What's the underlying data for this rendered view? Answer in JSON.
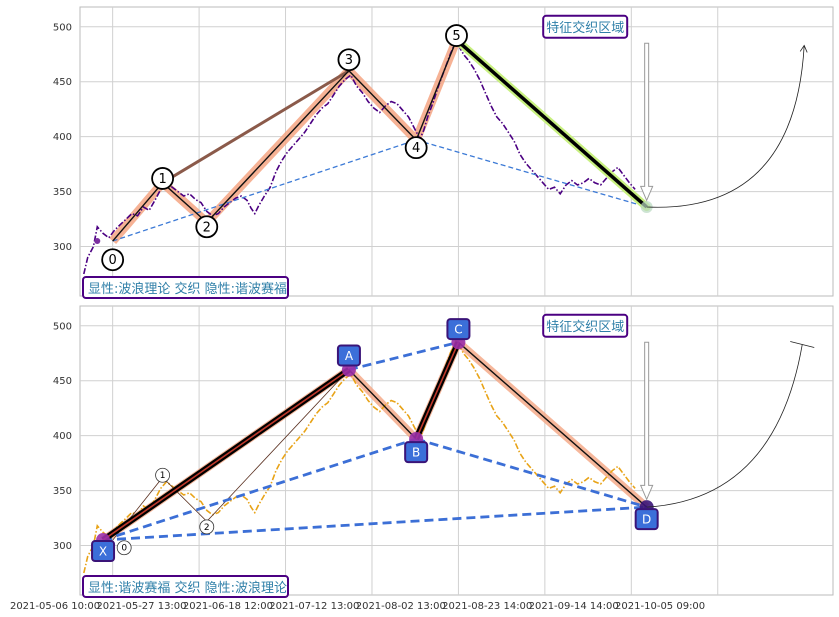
{
  "chart_data": [
    {
      "type": "line",
      "panel": "top",
      "ylim": [
        255,
        518
      ],
      "yticks": [
        300,
        350,
        400,
        450,
        500
      ],
      "grid": true,
      "price_color": "#4b0082",
      "price_style": "dash-dot",
      "price": [
        [
          -0.5,
          275
        ],
        [
          -0.3,
          290
        ],
        [
          0,
          300
        ],
        [
          0.2,
          318
        ],
        [
          0.5,
          312
        ],
        [
          0.8,
          308
        ],
        [
          1.1,
          315
        ],
        [
          1.4,
          320
        ],
        [
          1.7,
          325
        ],
        [
          2.0,
          330
        ],
        [
          2.3,
          328
        ],
        [
          2.6,
          336
        ],
        [
          2.9,
          333
        ],
        [
          3.2,
          342
        ],
        [
          3.5,
          352
        ],
        [
          3.8,
          358
        ],
        [
          4.1,
          354
        ],
        [
          4.4,
          350
        ],
        [
          4.7,
          346
        ],
        [
          5.0,
          348
        ],
        [
          5.3,
          343
        ],
        [
          5.6,
          340
        ],
        [
          5.9,
          332
        ],
        [
          6.2,
          328
        ],
        [
          6.5,
          330
        ],
        [
          6.8,
          336
        ],
        [
          7.1,
          340
        ],
        [
          7.4,
          344
        ],
        [
          7.7,
          346
        ],
        [
          8.0,
          342
        ],
        [
          8.2,
          335
        ],
        [
          8.4,
          330
        ],
        [
          8.6,
          337
        ],
        [
          8.9,
          346
        ],
        [
          9.2,
          354
        ],
        [
          9.5,
          368
        ],
        [
          9.8,
          378
        ],
        [
          10.1,
          386
        ],
        [
          10.4,
          392
        ],
        [
          10.7,
          398
        ],
        [
          11.0,
          404
        ],
        [
          11.3,
          412
        ],
        [
          11.6,
          420
        ],
        [
          11.9,
          426
        ],
        [
          12.2,
          430
        ],
        [
          12.5,
          438
        ],
        [
          12.8,
          446
        ],
        [
          13.1,
          452
        ],
        [
          13.4,
          456
        ],
        [
          13.7,
          446
        ],
        [
          14.0,
          440
        ],
        [
          14.3,
          432
        ],
        [
          14.6,
          426
        ],
        [
          14.9,
          422
        ],
        [
          15.2,
          428
        ],
        [
          15.5,
          432
        ],
        [
          15.8,
          430
        ],
        [
          16.1,
          424
        ],
        [
          16.4,
          418
        ],
        [
          16.7,
          408
        ],
        [
          17.0,
          398
        ],
        [
          17.2,
          406
        ],
        [
          17.4,
          418
        ],
        [
          17.7,
          432
        ],
        [
          18.0,
          448
        ],
        [
          18.3,
          462
        ],
        [
          18.6,
          476
        ],
        [
          18.9,
          488
        ],
        [
          19.1,
          480
        ],
        [
          19.3,
          474
        ],
        [
          19.5,
          470
        ],
        [
          19.8,
          462
        ],
        [
          20.1,
          452
        ],
        [
          20.4,
          440
        ],
        [
          20.7,
          428
        ],
        [
          21.0,
          418
        ],
        [
          21.3,
          412
        ],
        [
          21.6,
          404
        ],
        [
          21.9,
          396
        ],
        [
          22.2,
          384
        ],
        [
          22.5,
          376
        ],
        [
          22.8,
          370
        ],
        [
          23.1,
          364
        ],
        [
          23.4,
          358
        ],
        [
          23.7,
          352
        ],
        [
          24.0,
          354
        ],
        [
          24.3,
          348
        ],
        [
          24.6,
          356
        ],
        [
          24.9,
          360
        ],
        [
          25.2,
          356
        ],
        [
          25.5,
          358
        ],
        [
          25.8,
          362
        ],
        [
          26.1,
          358
        ],
        [
          26.4,
          356
        ],
        [
          26.7,
          362
        ],
        [
          27.0,
          368
        ],
        [
          27.3,
          372
        ],
        [
          27.6,
          365
        ],
        [
          27.9,
          358
        ],
        [
          28.2,
          352
        ]
      ],
      "wave_points": [
        {
          "label": "0",
          "x": 1.0,
          "y": 305
        },
        {
          "label": "1",
          "x": 3.6,
          "y": 358
        },
        {
          "label": "2",
          "x": 5.9,
          "y": 322
        },
        {
          "label": "3",
          "x": 13.3,
          "y": 460
        },
        {
          "label": "4",
          "x": 16.8,
          "y": 397
        },
        {
          "label": "5",
          "x": 18.9,
          "y": 488
        },
        {
          "label": "",
          "x": 28.8,
          "y": 336
        }
      ],
      "wave_label_pos": [
        [
          1.0,
          288
        ],
        [
          3.6,
          362
        ],
        [
          5.9,
          318
        ],
        [
          13.3,
          470
        ],
        [
          16.8,
          390
        ],
        [
          18.9,
          492
        ]
      ],
      "lines": [
        {
          "from": [
            3.6,
            358
          ],
          "to": [
            13.3,
            460
          ],
          "color": "#8b4513",
          "kind": "thick-brown"
        },
        {
          "from": [
            18.9,
            488
          ],
          "to": [
            28.8,
            336
          ],
          "color": "#c8f080",
          "kind": "highlight"
        },
        {
          "from": [
            18.9,
            488
          ],
          "to": [
            28.8,
            336
          ],
          "color": "#000000",
          "kind": "thick-black"
        },
        {
          "from": [
            1.0,
            305
          ],
          "to": [
            16.8,
            397
          ],
          "color": "#3c7ad6",
          "kind": "dashed"
        },
        {
          "from": [
            16.8,
            397
          ],
          "to": [
            28.8,
            336
          ],
          "color": "#3c7ad6",
          "kind": "dashed"
        }
      ],
      "zone_label": "特征交织区域",
      "zone_label_pos": [
        25.6,
        500
      ],
      "arrow_down": {
        "x": 28.8,
        "from": 485,
        "to": 342
      },
      "curve_arrow": {
        "from": [
          28.8,
          336
        ],
        "ctrl": [
          36.5,
          330
        ],
        "to": [
          37.0,
          483
        ]
      },
      "caption": "显性:波浪理论 交织 隐性:谐波赛福"
    },
    {
      "type": "line",
      "panel": "bottom",
      "ylim": [
        255,
        518
      ],
      "yticks": [
        300,
        350,
        400,
        450,
        500
      ],
      "grid": true,
      "price_color": "#e8a317",
      "price_style": "dash-dot",
      "price": [
        [
          -0.5,
          275
        ],
        [
          -0.3,
          290
        ],
        [
          0,
          300
        ],
        [
          0.2,
          318
        ],
        [
          0.5,
          312
        ],
        [
          0.8,
          308
        ],
        [
          1.1,
          315
        ],
        [
          1.4,
          320
        ],
        [
          1.7,
          325
        ],
        [
          2.0,
          330
        ],
        [
          2.3,
          328
        ],
        [
          2.6,
          336
        ],
        [
          2.9,
          333
        ],
        [
          3.2,
          342
        ],
        [
          3.5,
          352
        ],
        [
          3.8,
          358
        ],
        [
          4.1,
          354
        ],
        [
          4.4,
          350
        ],
        [
          4.7,
          346
        ],
        [
          5.0,
          348
        ],
        [
          5.3,
          343
        ],
        [
          5.6,
          340
        ],
        [
          5.9,
          332
        ],
        [
          6.2,
          328
        ],
        [
          6.5,
          330
        ],
        [
          6.8,
          336
        ],
        [
          7.1,
          340
        ],
        [
          7.4,
          344
        ],
        [
          7.7,
          346
        ],
        [
          8.0,
          342
        ],
        [
          8.2,
          335
        ],
        [
          8.4,
          330
        ],
        [
          8.6,
          337
        ],
        [
          8.9,
          346
        ],
        [
          9.2,
          354
        ],
        [
          9.5,
          368
        ],
        [
          9.8,
          378
        ],
        [
          10.1,
          386
        ],
        [
          10.4,
          392
        ],
        [
          10.7,
          398
        ],
        [
          11.0,
          404
        ],
        [
          11.3,
          412
        ],
        [
          11.6,
          420
        ],
        [
          11.9,
          426
        ],
        [
          12.2,
          430
        ],
        [
          12.5,
          438
        ],
        [
          12.8,
          446
        ],
        [
          13.1,
          452
        ],
        [
          13.4,
          456
        ],
        [
          13.7,
          446
        ],
        [
          14.0,
          440
        ],
        [
          14.3,
          432
        ],
        [
          14.6,
          426
        ],
        [
          14.9,
          422
        ],
        [
          15.2,
          428
        ],
        [
          15.5,
          432
        ],
        [
          15.8,
          430
        ],
        [
          16.1,
          424
        ],
        [
          16.4,
          418
        ],
        [
          16.7,
          408
        ],
        [
          17.0,
          398
        ],
        [
          17.2,
          406
        ],
        [
          17.4,
          418
        ],
        [
          17.7,
          432
        ],
        [
          18.0,
          448
        ],
        [
          18.3,
          462
        ],
        [
          18.6,
          476
        ],
        [
          18.9,
          488
        ],
        [
          19.1,
          480
        ],
        [
          19.3,
          474
        ],
        [
          19.5,
          470
        ],
        [
          19.8,
          462
        ],
        [
          20.1,
          452
        ],
        [
          20.4,
          440
        ],
        [
          20.7,
          428
        ],
        [
          21.0,
          418
        ],
        [
          21.3,
          412
        ],
        [
          21.6,
          404
        ],
        [
          21.9,
          396
        ],
        [
          22.2,
          384
        ],
        [
          22.5,
          376
        ],
        [
          22.8,
          370
        ],
        [
          23.1,
          364
        ],
        [
          23.4,
          358
        ],
        [
          23.7,
          352
        ],
        [
          24.0,
          354
        ],
        [
          24.3,
          348
        ],
        [
          24.6,
          356
        ],
        [
          24.9,
          360
        ],
        [
          25.2,
          356
        ],
        [
          25.5,
          358
        ],
        [
          25.8,
          362
        ],
        [
          26.1,
          358
        ],
        [
          26.4,
          356
        ],
        [
          26.7,
          362
        ],
        [
          27.0,
          368
        ],
        [
          27.3,
          372
        ],
        [
          27.6,
          365
        ],
        [
          27.9,
          358
        ],
        [
          28.2,
          352
        ]
      ],
      "harmonic_points": [
        {
          "label": "X",
          "x": 0.5,
          "y": 305
        },
        {
          "label": "A",
          "x": 13.3,
          "y": 460
        },
        {
          "label": "B",
          "x": 16.8,
          "y": 397
        },
        {
          "label": "C",
          "x": 19.0,
          "y": 485
        },
        {
          "label": "D",
          "x": 28.8,
          "y": 335
        }
      ],
      "harmonic_label_pos": [
        [
          0.5,
          295
        ],
        [
          13.3,
          473
        ],
        [
          16.8,
          385
        ],
        [
          19.0,
          497
        ],
        [
          28.8,
          324
        ]
      ],
      "small_wave": [
        {
          "label": "0",
          "x": 1.0,
          "y": 305
        },
        {
          "label": "1",
          "x": 3.6,
          "y": 362
        },
        {
          "label": "2",
          "x": 5.9,
          "y": 322
        }
      ],
      "small_wave_label_pos": [
        [
          1.6,
          298
        ],
        [
          3.6,
          364
        ],
        [
          5.9,
          317
        ]
      ],
      "dashed_lines": [
        {
          "from": [
            0.5,
            305
          ],
          "to": [
            16.8,
            397
          ]
        },
        {
          "from": [
            16.8,
            397
          ],
          "to": [
            28.8,
            335
          ]
        },
        {
          "from": [
            0.5,
            305
          ],
          "to": [
            28.8,
            335
          ]
        },
        {
          "from": [
            13.3,
            460
          ],
          "to": [
            19.0,
            485
          ]
        }
      ],
      "zone_label": "特征交织区域",
      "zone_label_pos": [
        25.6,
        500
      ],
      "arrow_down": {
        "x": 28.8,
        "from": 485,
        "to": 342
      },
      "curve_arrow": {
        "from": [
          28.8,
          335
        ],
        "ctrl": [
          35.5,
          342
        ],
        "to": [
          36.9,
          483
        ]
      },
      "caption": "显性:谐波赛福 交织 隐性:波浪理论"
    }
  ],
  "x_axis": {
    "range": [
      -0.7,
      38.5
    ],
    "ticks": [
      -4,
      1,
      5.5,
      10,
      14.5,
      19,
      23.5,
      28,
      32.5
    ],
    "labels": [
      "2021-05-06 10:00",
      "2021-05-27 13:00",
      "2021-06-18 12:00",
      "2021-07-12 13:00",
      "2021-08-02 13:00",
      "2021-08-23 14:00",
      "2021-09-14 14:00",
      "2021-10-05 09:00"
    ],
    "label_ticks": [
      -2,
      2.5,
      7,
      11.5,
      16,
      20.5,
      25,
      29.5
    ]
  }
}
